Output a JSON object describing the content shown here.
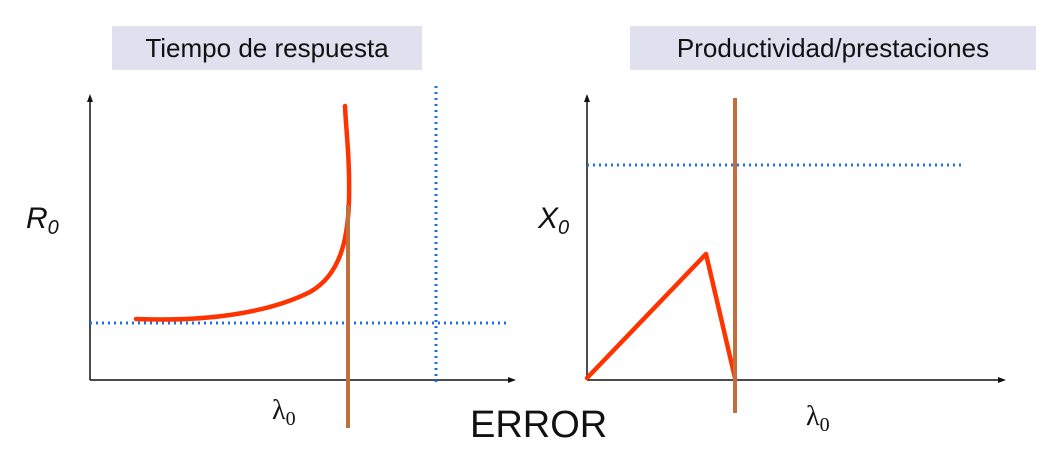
{
  "left_panel": {
    "title": "Tiempo de respuesta",
    "y_label_main": "R",
    "y_label_sub": "0",
    "x_label_main": "λ",
    "x_label_sub": "0"
  },
  "right_panel": {
    "title": "Productividad/prestaciones",
    "y_label_main": "X",
    "y_label_sub": "0",
    "x_label_main": "λ",
    "x_label_sub": "0"
  },
  "error_label": "ERROR",
  "colors": {
    "curve": "#ff3300",
    "limit_line": "#c0703c",
    "dotted": "#1e6fe8",
    "axis": "#111111",
    "title_bg": "#e0e0ee"
  }
}
